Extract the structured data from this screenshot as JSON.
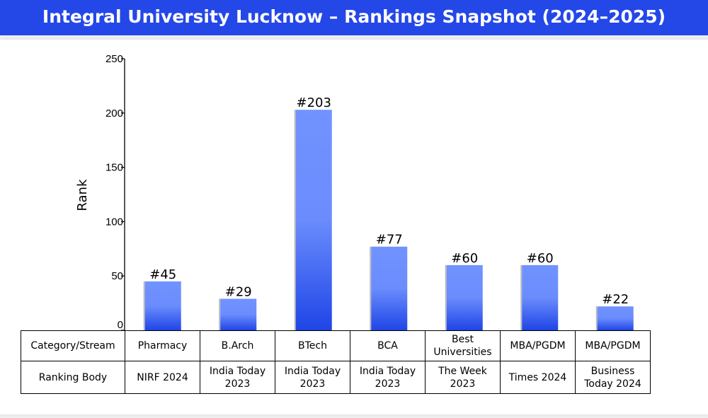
{
  "title": "Integral University Lucknow – Rankings Snapshot (2024–2025)",
  "chart_data": {
    "type": "bar",
    "title": "Integral University Lucknow – Rankings Snapshot (2024–2025)",
    "ylabel": "Rank",
    "xlabel": "",
    "ylim": [
      0,
      250
    ],
    "yticks": [
      0,
      50,
      100,
      150,
      200,
      250
    ],
    "categories": [
      "Pharmacy",
      "B.Arch",
      "BTech",
      "BCA",
      "Best Universities",
      "MBA/PGDM",
      "MBA/PGDM"
    ],
    "values": [
      45,
      29,
      203,
      77,
      60,
      60,
      22
    ],
    "bar_labels": [
      "#45",
      "#29",
      "#203",
      "#77",
      "#60",
      "#60",
      "#22"
    ],
    "grid": false,
    "bar_color_top": "#7193ff",
    "bar_color_bottom": "#1f45e6"
  },
  "table": {
    "row1_header": "Category/Stream",
    "row2_header": "Ranking Body",
    "row1": [
      "Pharmacy",
      "B.Arch",
      "BTech",
      "BCA",
      "Best Universities",
      "MBA/PGDM",
      "MBA/PGDM"
    ],
    "row2": [
      "NIRF 2024",
      "India Today 2023",
      "India Today 2023",
      "India Today 2023",
      "The Week 2023",
      "Times 2024",
      "Business Today 2024"
    ]
  },
  "colors": {
    "title_bg": "#2447e8",
    "title_text": "#ffffff"
  }
}
